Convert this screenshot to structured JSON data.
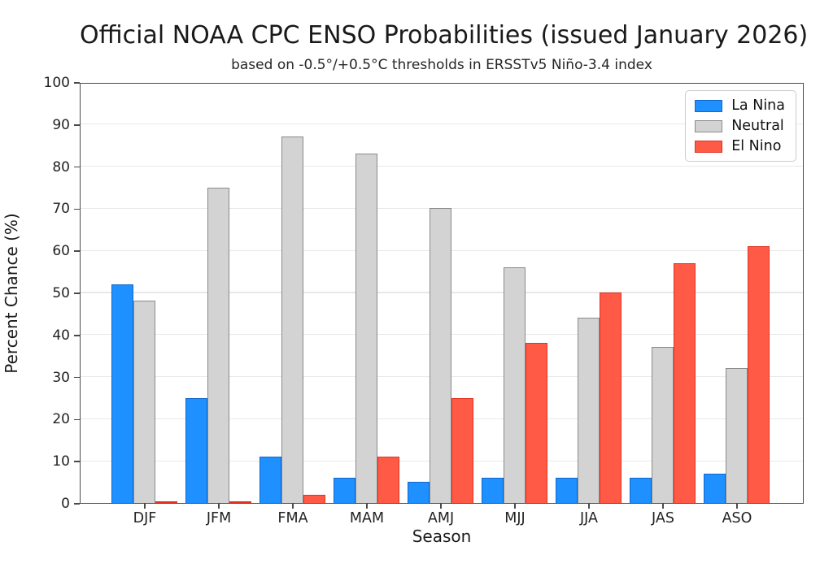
{
  "chart_data": {
    "type": "bar",
    "title": "Official NOAA CPC ENSO Probabilities (issued January 2026)",
    "subtitle": "based on -0.5°/+0.5°C thresholds in ERSSTv5 Niño-3.4 index",
    "categories": [
      "DJF",
      "JFM",
      "FMA",
      "MAM",
      "AMJ",
      "MJJ",
      "JJA",
      "JAS",
      "ASO"
    ],
    "series": [
      {
        "name": "La Nina",
        "color": "#1E90FF",
        "edge_color": "#1467C8",
        "values": [
          52,
          25,
          11,
          6,
          5,
          6,
          6,
          6,
          7
        ]
      },
      {
        "name": "Neutral",
        "color": "#D3D3D3",
        "edge_color": "#8A8A8A",
        "values": [
          48,
          75,
          87,
          83,
          70,
          56,
          44,
          37,
          32
        ]
      },
      {
        "name": "El Nino",
        "color": "#FF5A45",
        "edge_color": "#E23222",
        "values": [
          0,
          0,
          2,
          11,
          25,
          38,
          50,
          57,
          61
        ]
      }
    ],
    "xlabel": "Season",
    "ylabel": "Percent Chance (%)",
    "ylim": [
      0,
      100
    ],
    "yticks": [
      0,
      10,
      20,
      30,
      40,
      50,
      60,
      70,
      80,
      90,
      100
    ],
    "grid": "horizontal",
    "legend_position": "upper right"
  }
}
